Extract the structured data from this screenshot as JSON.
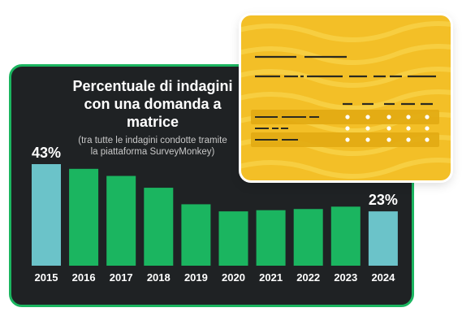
{
  "chart": {
    "title": "Percentuale di indagini\ncon una domanda a\nmatrice",
    "subtitle": "(tra tutte le indagini condotte tramite\nla piattaforma SurveyMonkey)"
  },
  "chart_data": {
    "type": "bar",
    "title": "Percentuale di indagini con una domanda a matrice",
    "subtitle": "(tra tutte le indagini condotte tramite la piattaforma SurveyMonkey)",
    "categories": [
      "2015",
      "2016",
      "2017",
      "2018",
      "2019",
      "2020",
      "2021",
      "2022",
      "2023",
      "2024"
    ],
    "values": [
      43,
      41,
      38,
      33,
      26,
      23,
      23.5,
      24,
      25,
      23
    ],
    "value_labels": {
      "2015": "43%",
      "2024": "23%"
    },
    "highlight": [
      "2015",
      "2024"
    ],
    "xlabel": "",
    "ylabel": "",
    "ylim": [
      0,
      43
    ],
    "grid": false,
    "legend": "none"
  },
  "colors": {
    "card_bg": "#1f2224",
    "card_border": "#1bb560",
    "bar": "#1bb560",
    "bar_highlight": "#6bc3c9",
    "form_bg": "#f3bf27",
    "form_lines": "#2b2a20"
  }
}
